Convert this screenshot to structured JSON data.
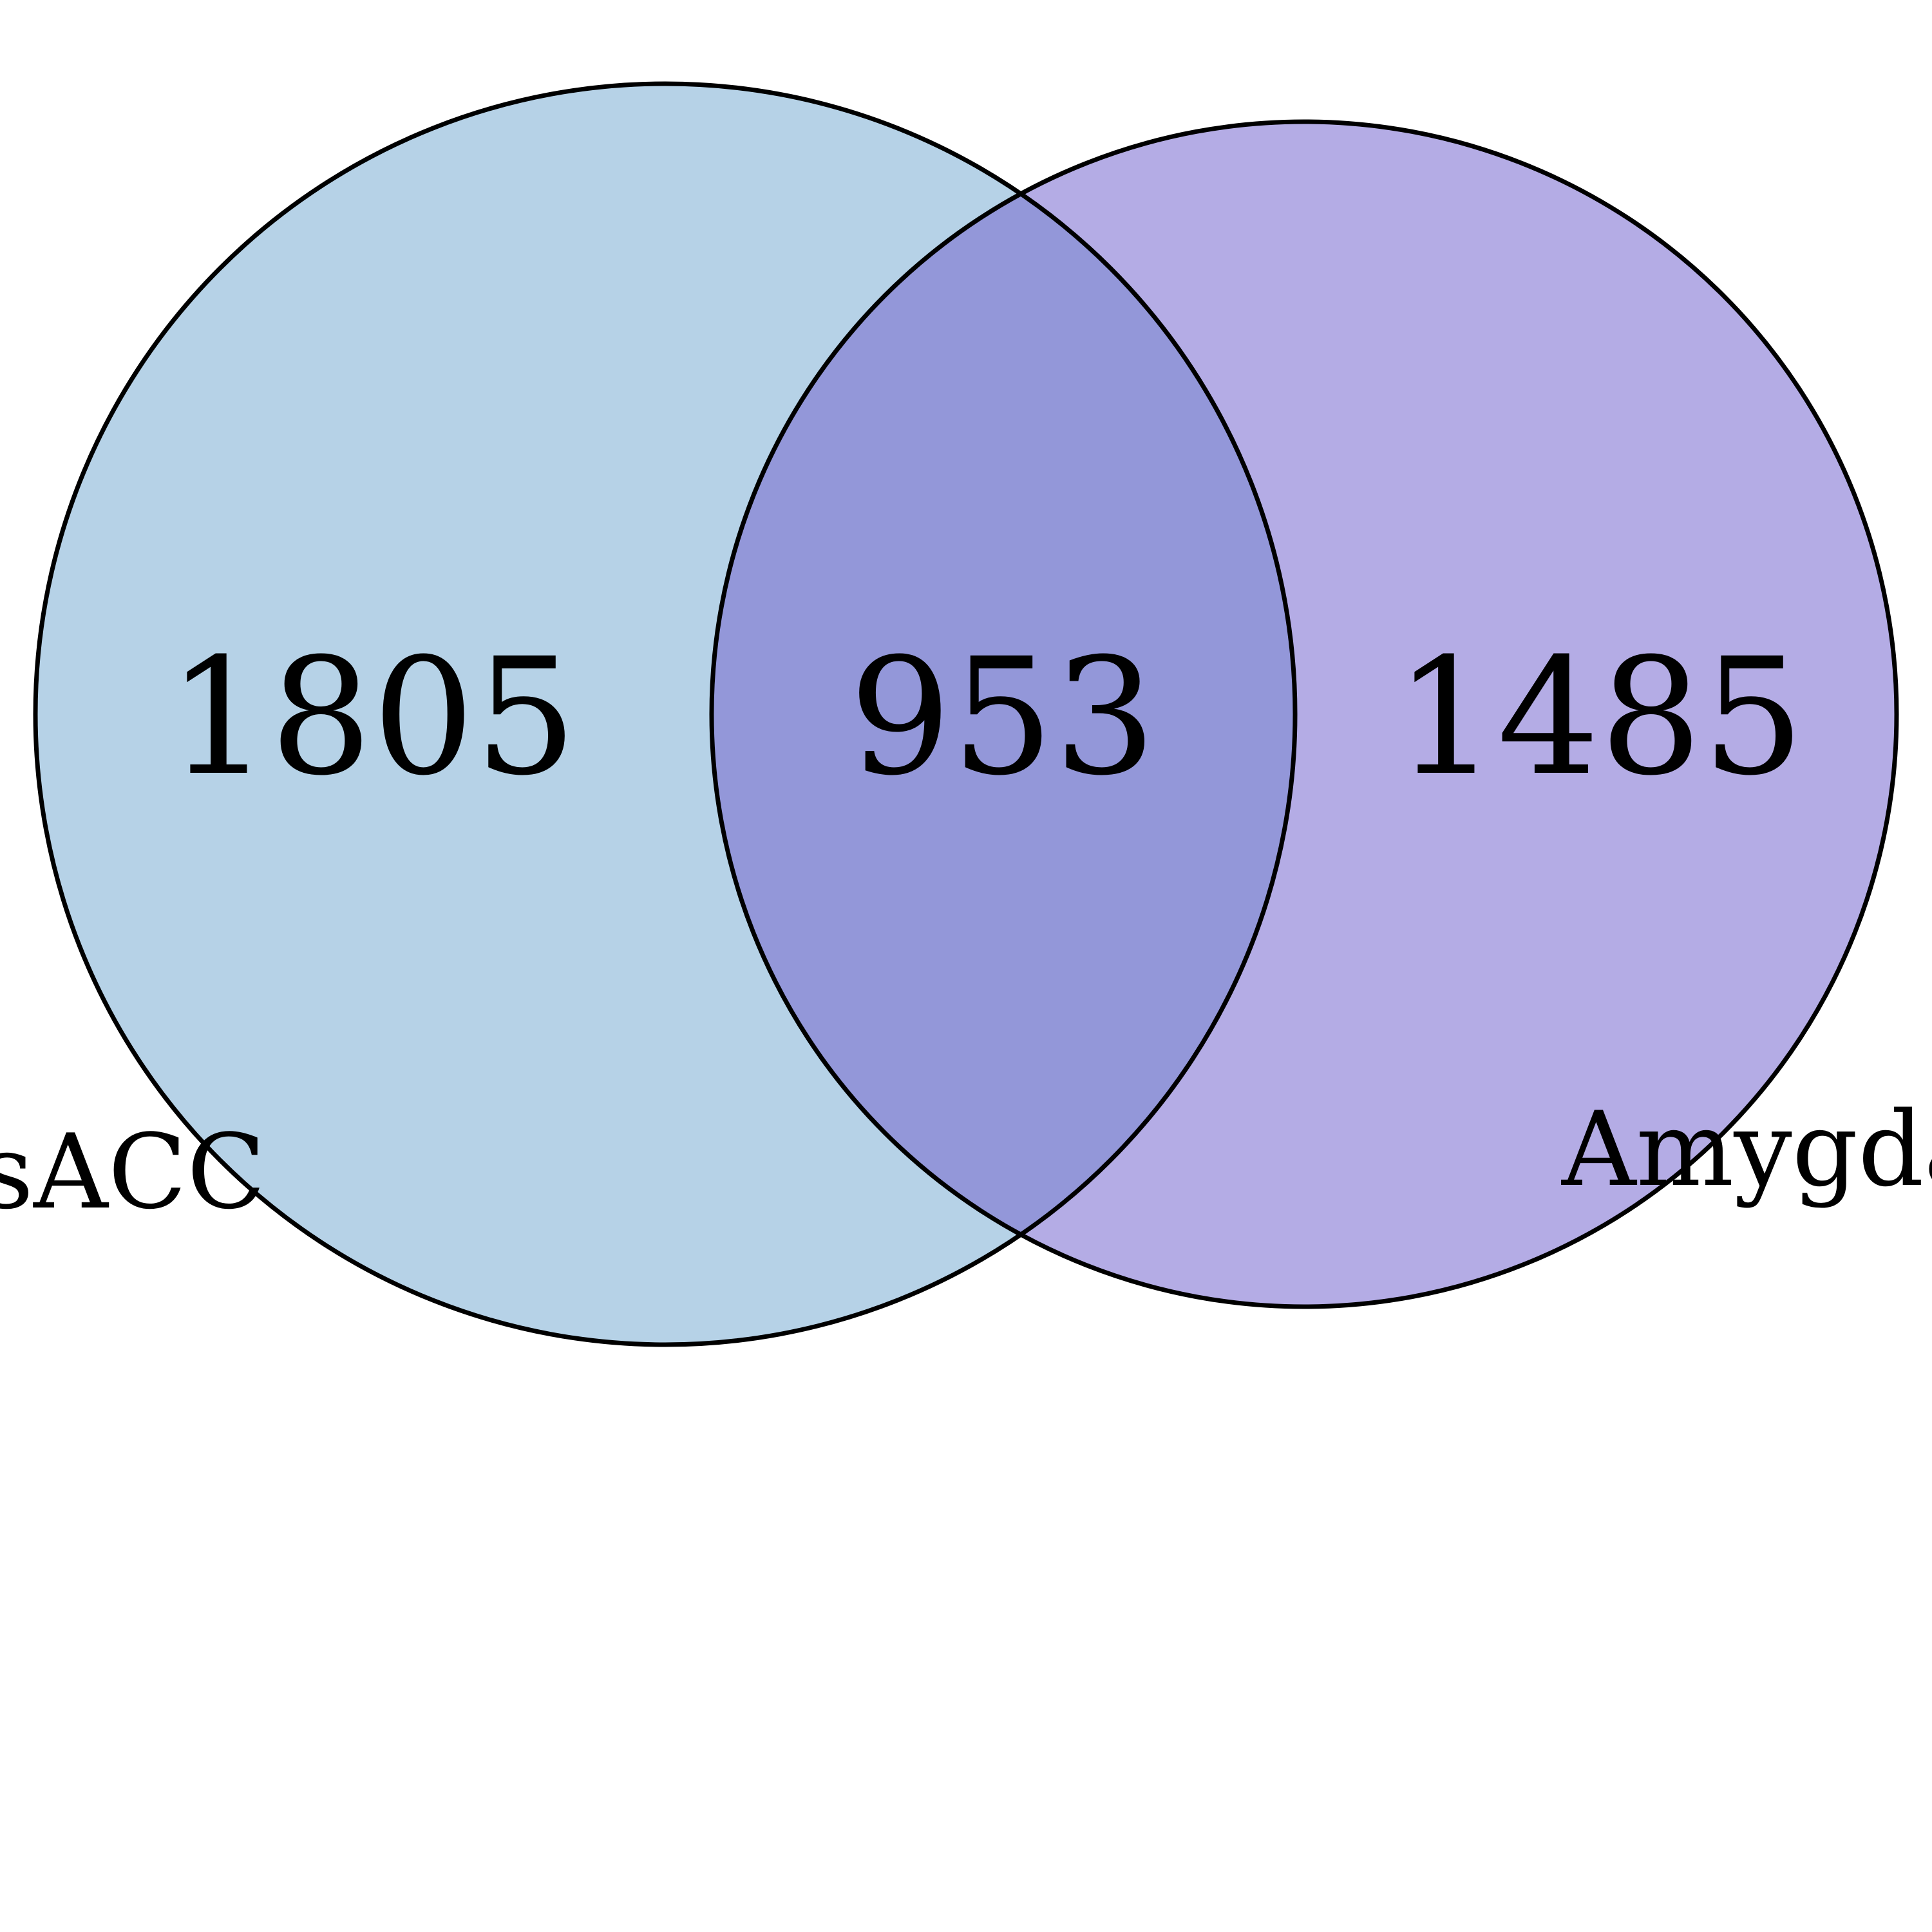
{
  "venn": {
    "sets": [
      {
        "name": "sACC",
        "only_count": "1805",
        "fill": "#b6d2e7"
      },
      {
        "name": "Amygdala",
        "only_count": "1485",
        "fill": "#b4ace5"
      }
    ],
    "intersection": {
      "count": "953",
      "fill": "#9397d9"
    },
    "outline_color": "#000000"
  }
}
